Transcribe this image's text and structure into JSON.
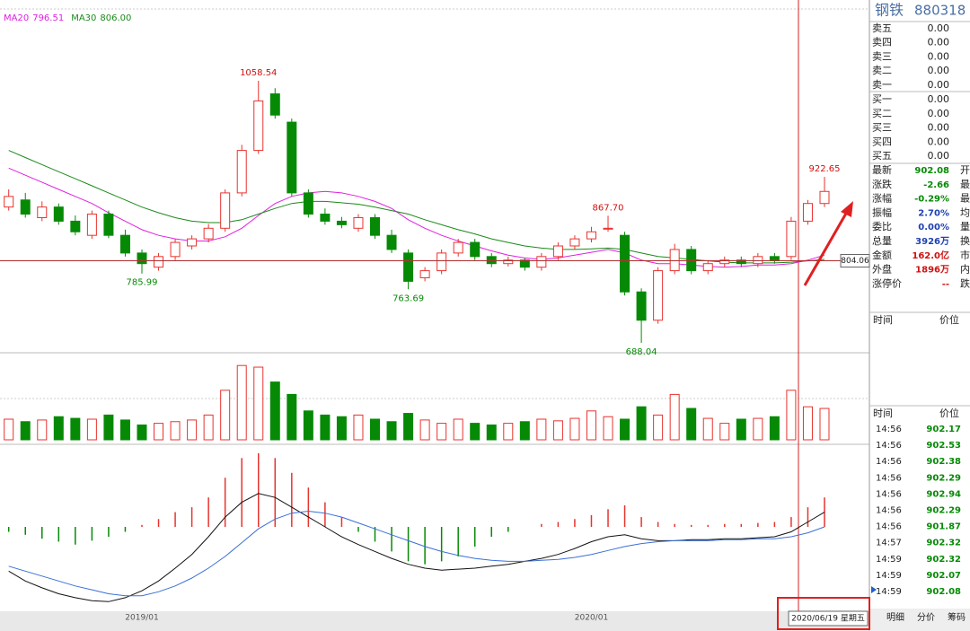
{
  "chart_data": [
    {
      "type": "candlestick",
      "categories": [
        null,
        null,
        null,
        null,
        null,
        null,
        null,
        null,
        "2019/01",
        null,
        null,
        null,
        null,
        null,
        null,
        null,
        null,
        null,
        null,
        null,
        null,
        null,
        null,
        null,
        null,
        null,
        null,
        null,
        null,
        null,
        null,
        null,
        null,
        null,
        null,
        "2020/01",
        null,
        null,
        null,
        null,
        null,
        null,
        null,
        null,
        null,
        null,
        null,
        null,
        null,
        null
      ],
      "open": [
        880,
        890,
        865,
        880,
        860,
        840,
        870,
        840,
        815,
        795,
        810,
        825,
        835,
        850,
        900,
        960,
        1040,
        1000,
        900,
        870,
        860,
        850,
        865,
        840,
        815,
        780,
        790,
        815,
        830,
        810,
        800,
        805,
        795,
        810,
        825,
        835,
        850,
        840,
        760,
        720,
        790,
        820,
        790,
        800,
        805,
        800,
        810,
        810,
        860,
        885
      ],
      "high": [
        905,
        900,
        888,
        885,
        868,
        875,
        875,
        848,
        820,
        815,
        835,
        840,
        856,
        905,
        968,
        1058.54,
        1048,
        1005,
        905,
        878,
        866,
        870,
        870,
        848,
        820,
        795,
        820,
        835,
        835,
        815,
        810,
        808,
        815,
        830,
        840,
        852,
        867.7,
        845,
        765,
        795,
        828,
        825,
        805,
        810,
        810,
        815,
        815,
        866,
        890,
        922.65
      ],
      "low": [
        875,
        865,
        860,
        855,
        840,
        835,
        836,
        810,
        785.99,
        790,
        805,
        820,
        830,
        845,
        895,
        955,
        1005,
        895,
        865,
        855,
        850,
        845,
        835,
        815,
        763.69,
        775,
        785,
        810,
        805,
        795,
        796,
        790,
        790,
        805,
        820,
        830,
        845,
        755,
        688.04,
        715,
        785,
        785,
        785,
        795,
        795,
        795,
        800,
        805,
        855,
        880
      ],
      "close": [
        895,
        870,
        880,
        860,
        845,
        870,
        840,
        815,
        800,
        810,
        830,
        835,
        850,
        900,
        960,
        1030,
        1010,
        900,
        870,
        860,
        855,
        865,
        840,
        820,
        775,
        790,
        815,
        830,
        810,
        800,
        805,
        795,
        810,
        825,
        835,
        845,
        850,
        760,
        720,
        790,
        820,
        790,
        800,
        805,
        800,
        810,
        805,
        860,
        885,
        902.08
      ],
      "high_labels": [
        null,
        null,
        null,
        null,
        null,
        null,
        null,
        null,
        null,
        null,
        null,
        null,
        null,
        null,
        null,
        "1058.54",
        null,
        null,
        null,
        null,
        null,
        null,
        null,
        null,
        null,
        null,
        null,
        null,
        null,
        null,
        null,
        null,
        null,
        null,
        null,
        null,
        "867.70",
        null,
        null,
        null,
        null,
        null,
        null,
        null,
        null,
        null,
        null,
        null,
        null,
        "922.65"
      ],
      "low_labels": [
        null,
        null,
        null,
        null,
        null,
        null,
        null,
        null,
        "785.99",
        null,
        null,
        null,
        null,
        null,
        null,
        null,
        null,
        null,
        null,
        null,
        null,
        null,
        null,
        null,
        "763.69",
        null,
        null,
        null,
        null,
        null,
        null,
        null,
        null,
        null,
        null,
        null,
        null,
        null,
        "688.04",
        null,
        null,
        null,
        null,
        null,
        null,
        null,
        null,
        null,
        null,
        null
      ],
      "up_color": "#e8332e",
      "down_color": "#068a06",
      "series": [
        {
          "name": "MA20",
          "legend_value": "796.51",
          "color": "#e020e0",
          "values": [
            935,
            925,
            915,
            905,
            895,
            885,
            872,
            860,
            848,
            840,
            835,
            832,
            832,
            838,
            850,
            868,
            885,
            895,
            900,
            902,
            900,
            895,
            888,
            878,
            862,
            850,
            840,
            832,
            825,
            818,
            812,
            808,
            806,
            808,
            812,
            816,
            820,
            815,
            805,
            800,
            800,
            798,
            796,
            795,
            796,
            798,
            798,
            800,
            805,
            812
          ]
        },
        {
          "name": "MA30",
          "legend_value": "806.00",
          "color": "#1a8a1a",
          "values": [
            960,
            950,
            940,
            930,
            920,
            910,
            900,
            890,
            880,
            872,
            865,
            860,
            858,
            858,
            862,
            870,
            878,
            885,
            888,
            888,
            886,
            884,
            880,
            875,
            870,
            862,
            855,
            848,
            842,
            835,
            830,
            825,
            822,
            820,
            820,
            821,
            822,
            820,
            815,
            810,
            808,
            806,
            804,
            802,
            801,
            801,
            801,
            802,
            804,
            806
          ]
        }
      ],
      "ylim": [
        674,
        1160
      ],
      "cursor_price": 804.06,
      "cursor_date": "2020/06/19 星期五"
    },
    {
      "type": "volume",
      "values": [
        25,
        22,
        24,
        28,
        26,
        25,
        30,
        24,
        18,
        20,
        22,
        24,
        30,
        60,
        90,
        88,
        70,
        55,
        35,
        30,
        28,
        30,
        25,
        22,
        32,
        24,
        20,
        25,
        20,
        18,
        20,
        22,
        25,
        23,
        26,
        35,
        28,
        25,
        40,
        30,
        55,
        38,
        26,
        20,
        25,
        26,
        28,
        60,
        40,
        38
      ],
      "ylim": [
        0,
        100
      ]
    },
    {
      "type": "macd",
      "values": [
        -5,
        -8,
        -12,
        -15,
        -18,
        -14,
        -10,
        -5,
        2,
        8,
        15,
        20,
        30,
        50,
        70,
        75,
        70,
        55,
        40,
        25,
        10,
        -5,
        -15,
        -25,
        -35,
        -38,
        -35,
        -30,
        -20,
        -10,
        -5,
        0,
        3,
        5,
        8,
        12,
        18,
        22,
        10,
        5,
        3,
        2,
        2,
        3,
        3,
        4,
        5,
        10,
        20,
        30
      ],
      "lines": [
        {
          "color": "#111111",
          "values": [
            -45,
            -55,
            -62,
            -68,
            -72,
            -75,
            -76,
            -72,
            -65,
            -55,
            -42,
            -28,
            -10,
            10,
            25,
            34,
            30,
            20,
            10,
            0,
            -10,
            -18,
            -25,
            -32,
            -38,
            -42,
            -44,
            -43,
            -42,
            -40,
            -38,
            -35,
            -32,
            -28,
            -22,
            -15,
            -10,
            -8,
            -12,
            -14,
            -14,
            -13,
            -13,
            -12,
            -12,
            -11,
            -10,
            -5,
            5,
            15
          ]
        },
        {
          "color": "#3a6fd8",
          "values": [
            -40,
            -45,
            -50,
            -55,
            -60,
            -64,
            -68,
            -70,
            -70,
            -66,
            -60,
            -52,
            -42,
            -30,
            -16,
            -2,
            8,
            14,
            16,
            14,
            10,
            4,
            -2,
            -8,
            -14,
            -20,
            -25,
            -29,
            -32,
            -34,
            -35,
            -35,
            -34,
            -33,
            -31,
            -28,
            -24,
            -20,
            -17,
            -15,
            -14,
            -14,
            -14,
            -13,
            -13,
            -12,
            -12,
            -10,
            -6,
            0
          ]
        }
      ],
      "ylim": [
        -94,
        84
      ]
    }
  ],
  "quote": {
    "name": "钢铁",
    "code": "880318",
    "asks": [
      [
        "卖五",
        "0.00"
      ],
      [
        "卖四",
        "0.00"
      ],
      [
        "卖三",
        "0.00"
      ],
      [
        "卖二",
        "0.00"
      ],
      [
        "卖一",
        "0.00"
      ]
    ],
    "bids": [
      [
        "买一",
        "0.00"
      ],
      [
        "买二",
        "0.00"
      ],
      [
        "买三",
        "0.00"
      ],
      [
        "买四",
        "0.00"
      ],
      [
        "买五",
        "0.00"
      ]
    ],
    "stats": [
      {
        "label": "最新",
        "value": "902.08",
        "color": "#068a06",
        "side": "开"
      },
      {
        "label": "涨跌",
        "value": "-2.66",
        "color": "#068a06",
        "side": "最"
      },
      {
        "label": "涨幅",
        "value": "-0.29%",
        "color": "#068a06",
        "side": "最"
      },
      {
        "label": "振幅",
        "value": "2.70%",
        "color": "#2040b0",
        "side": "均"
      },
      {
        "label": "委比",
        "value": "0.00%",
        "color": "#2040b0",
        "side": "量"
      },
      {
        "label": "总量",
        "value": "3926万",
        "color": "#2040b0",
        "side": "换"
      },
      {
        "label": "金额",
        "value": "162.0亿",
        "color": "#d01010",
        "side": "市"
      },
      {
        "label": "外盘",
        "value": "1896万",
        "color": "#d01010",
        "side": "内"
      },
      {
        "label": "涨停价",
        "value": "--",
        "color": "#d01010",
        "side": "跌"
      }
    ],
    "header": [
      "时间",
      "价位"
    ],
    "ticks_header": [
      "时间",
      "价位"
    ],
    "trades": [
      [
        "14:56",
        "902.17"
      ],
      [
        "14:56",
        "902.53"
      ],
      [
        "14:56",
        "902.38"
      ],
      [
        "14:56",
        "902.29"
      ],
      [
        "14:56",
        "902.94"
      ],
      [
        "14:56",
        "902.29"
      ],
      [
        "14:56",
        "901.87"
      ],
      [
        "14:57",
        "902.32"
      ],
      [
        "14:59",
        "902.32"
      ],
      [
        "14:59",
        "902.07"
      ],
      [
        "14:59",
        "902.08"
      ]
    ],
    "trade_color": "#068a06",
    "tabs": [
      "明细",
      "分价",
      "筹码"
    ]
  }
}
